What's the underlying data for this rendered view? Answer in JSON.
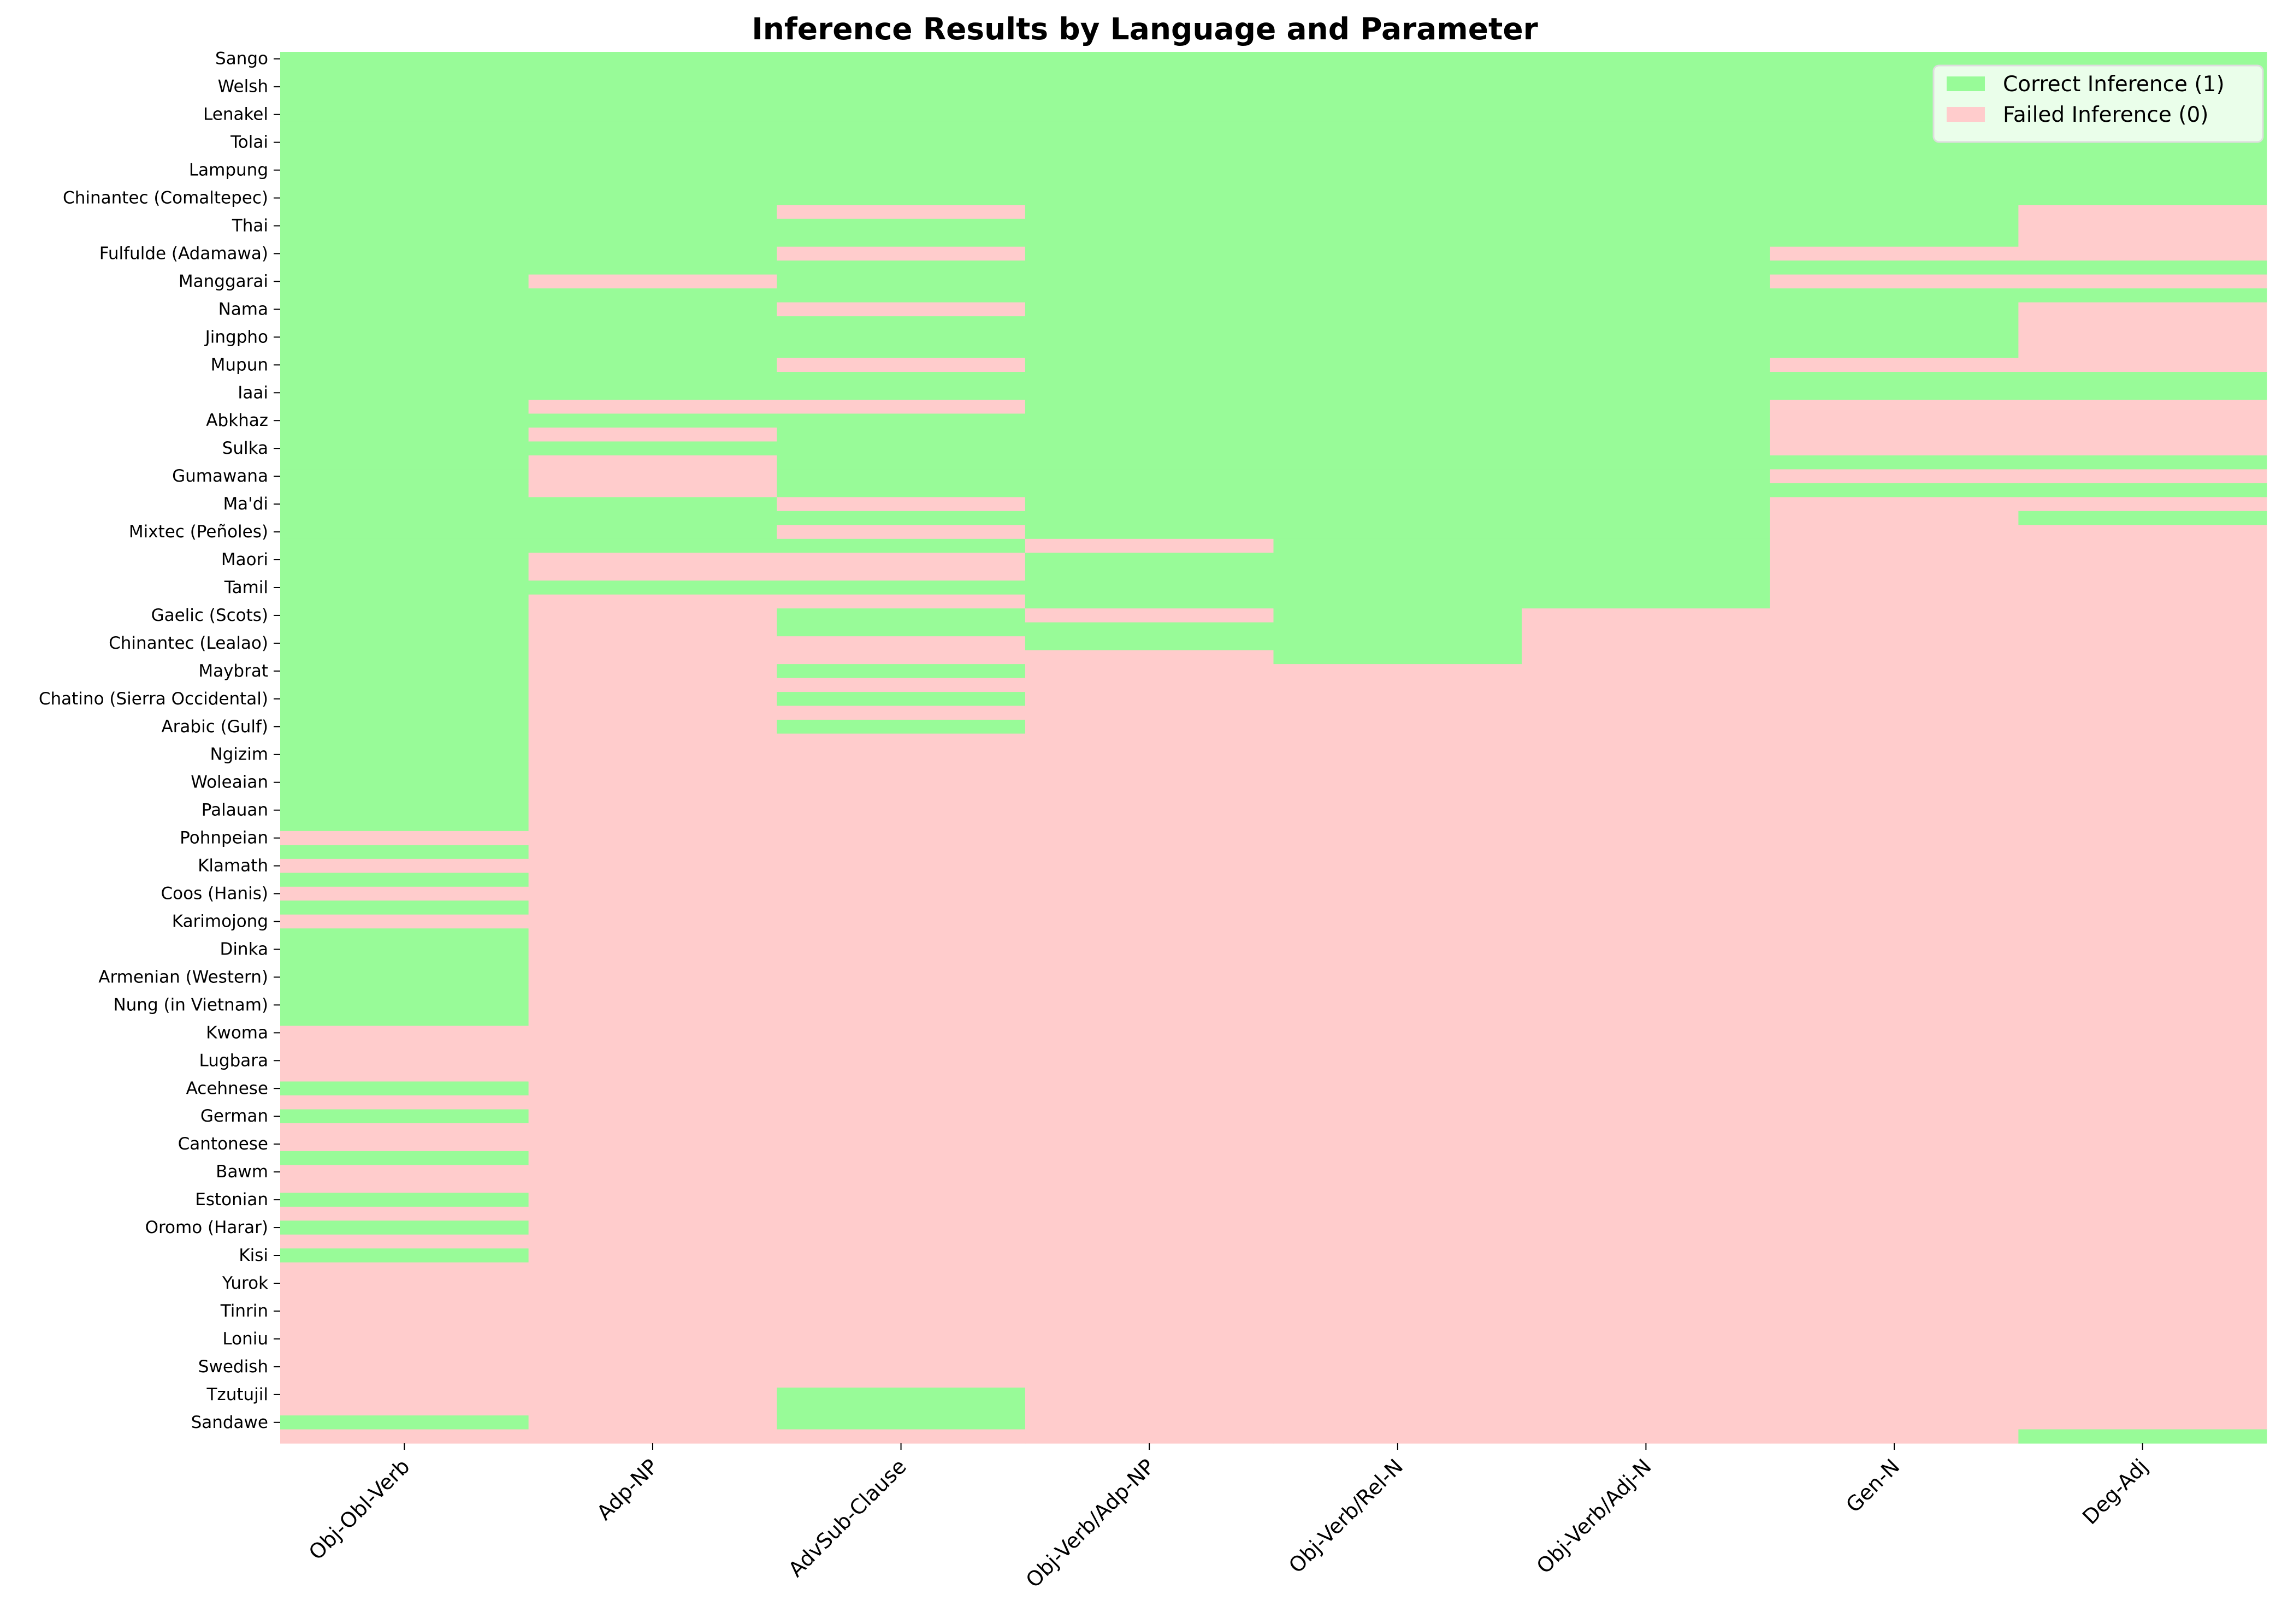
{
  "chart_data": {
    "type": "heatmap",
    "title": "Inference Results by Language and Parameter",
    "xlabel": "",
    "ylabel": "",
    "columns": [
      "Obj-Obl-Verb",
      "Adp-NP",
      "AdvSub-Clause",
      "Obj-Verb/Adp-NP",
      "Obj-Verb/Rel-N",
      "Obj-Verb/Adj-N",
      "Gen-N",
      "Deg-Adj"
    ],
    "row_count": 100,
    "row_tick_labels": [
      "Sango",
      "Welsh",
      "Lenakel",
      "Tolai",
      "Lampung",
      "Chinantec (Comaltepec)",
      "Thai",
      "Fulfulde (Adamawa)",
      "Manggarai",
      "Nama",
      "Jingpho",
      "Mupun",
      "Iaai",
      "Abkhaz",
      "Sulka",
      "Gumawana",
      "Ma'di",
      "Mixtec (Peñoles)",
      "Maori",
      "Tamil",
      "Gaelic (Scots)",
      "Chinantec (Lealao)",
      "Maybrat",
      "Chatino (Sierra Occidental)",
      "Arabic (Gulf)",
      "Ngizim",
      "Woleaian",
      "Palauan",
      "Pohnpeian",
      "Klamath",
      "Coos (Hanis)",
      "Karimojong",
      "Dinka",
      "Armenian (Western)",
      "Nung (in Vietnam)",
      "Kwoma",
      "Lugbara",
      "Acehnese",
      "German",
      "Cantonese",
      "Bawm",
      "Estonian",
      "Oromo (Harar)",
      "Kisi",
      "Yurok",
      "Tinrin",
      "Loniu",
      "Swedish",
      "Tzutujil",
      "Sandawe"
    ],
    "tick_every_n_rows": 2,
    "failed_rows": [
      [
        56,
        58,
        60,
        62,
        70,
        71,
        72,
        73,
        75,
        77,
        78,
        80,
        81,
        83,
        85,
        87,
        88,
        89,
        90,
        91,
        92,
        93,
        94,
        95,
        96,
        97,
        99
      ],
      [
        16,
        25,
        27,
        29,
        30,
        31,
        36,
        37,
        39,
        40,
        41,
        42,
        43,
        44,
        45,
        46,
        47,
        48,
        49,
        50,
        51,
        52,
        53,
        54,
        55,
        56,
        57,
        58,
        59,
        60,
        61,
        62,
        63,
        64,
        65,
        66,
        67,
        68,
        69,
        70,
        71,
        72,
        73,
        74,
        75,
        76,
        77,
        78,
        79,
        80,
        81,
        82,
        83,
        84,
        85,
        86,
        87,
        88,
        89,
        90,
        91,
        92,
        93,
        94,
        95,
        96,
        97,
        98,
        99
      ],
      [
        11,
        14,
        18,
        22,
        25,
        32,
        34,
        36,
        37,
        39,
        42,
        43,
        45,
        47,
        49,
        50,
        51,
        52,
        53,
        54,
        55,
        56,
        57,
        58,
        59,
        60,
        61,
        62,
        63,
        64,
        65,
        66,
        67,
        68,
        69,
        70,
        71,
        72,
        73,
        74,
        75,
        76,
        77,
        78,
        79,
        80,
        81,
        82,
        83,
        84,
        85,
        86,
        87,
        88,
        89,
        90,
        91,
        92,
        93,
        94,
        95,
        99
      ],
      [
        35,
        40,
        43,
        44,
        45,
        46,
        47,
        48,
        49,
        50,
        51,
        52,
        53,
        54,
        55,
        56,
        57,
        58,
        59,
        60,
        61,
        62,
        63,
        64,
        65,
        66,
        67,
        68,
        69,
        70,
        71,
        72,
        73,
        74,
        75,
        76,
        77,
        78,
        79,
        80,
        81,
        82,
        83,
        84,
        85,
        86,
        87,
        88,
        89,
        90,
        91,
        92,
        93,
        94,
        95,
        96,
        97,
        98,
        99
      ],
      [
        44,
        45,
        46,
        47,
        48,
        49,
        50,
        51,
        52,
        53,
        54,
        55,
        56,
        57,
        58,
        59,
        60,
        61,
        62,
        63,
        64,
        65,
        66,
        67,
        68,
        69,
        70,
        71,
        72,
        73,
        74,
        75,
        76,
        77,
        78,
        79,
        80,
        81,
        82,
        83,
        84,
        85,
        86,
        87,
        88,
        89,
        90,
        91,
        92,
        93,
        94,
        95,
        96,
        97,
        98,
        99
      ],
      [
        40,
        41,
        42,
        43,
        44,
        45,
        46,
        47,
        48,
        49,
        50,
        51,
        52,
        53,
        54,
        55,
        56,
        57,
        58,
        59,
        60,
        61,
        62,
        63,
        64,
        65,
        66,
        67,
        68,
        69,
        70,
        71,
        72,
        73,
        74,
        75,
        76,
        77,
        78,
        79,
        80,
        81,
        82,
        83,
        84,
        85,
        86,
        87,
        88,
        89,
        90,
        91,
        92,
        93,
        94,
        95,
        96,
        97,
        98,
        99
      ],
      [
        14,
        16,
        22,
        25,
        26,
        27,
        28,
        30,
        32,
        33,
        34,
        35,
        36,
        37,
        38,
        39,
        40,
        41,
        42,
        43,
        44,
        45,
        46,
        47,
        48,
        49,
        50,
        51,
        52,
        53,
        54,
        55,
        56,
        57,
        58,
        59,
        60,
        61,
        62,
        63,
        64,
        65,
        66,
        67,
        68,
        69,
        70,
        71,
        72,
        73,
        74,
        75,
        76,
        77,
        78,
        79,
        80,
        81,
        82,
        83,
        84,
        85,
        86,
        87,
        88,
        89,
        90,
        91,
        92,
        93,
        94,
        95,
        96,
        97,
        98,
        99
      ],
      [
        11,
        12,
        13,
        14,
        16,
        18,
        19,
        20,
        21,
        22,
        25,
        26,
        27,
        28,
        30,
        32,
        34,
        35,
        36,
        37,
        38,
        39,
        40,
        41,
        42,
        43,
        44,
        45,
        46,
        47,
        48,
        49,
        50,
        51,
        52,
        53,
        54,
        55,
        56,
        57,
        58,
        59,
        60,
        61,
        62,
        63,
        64,
        65,
        66,
        67,
        68,
        69,
        70,
        71,
        72,
        73,
        74,
        75,
        76,
        77,
        78,
        79,
        80,
        81,
        82,
        83,
        84,
        85,
        86,
        87,
        88,
        89,
        90,
        91,
        92,
        93,
        94,
        95,
        96,
        97,
        98
      ]
    ],
    "colors": {
      "correct": "#98fb98",
      "failed": "#ffcccc"
    },
    "legend_position": "top-right",
    "grid": false
  },
  "legend": {
    "correct_label": "Correct Inference (1)",
    "failed_label": "Failed Inference (0)"
  }
}
